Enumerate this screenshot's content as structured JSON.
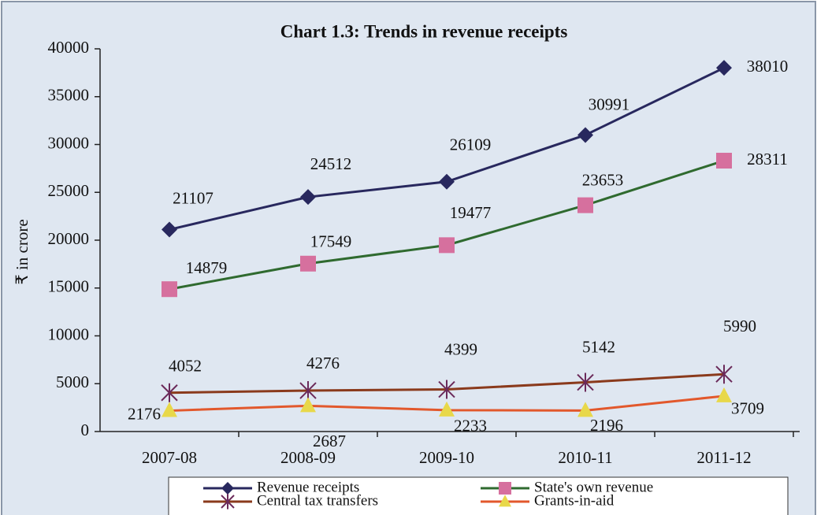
{
  "chart_data": {
    "type": "line",
    "title": "Chart 1.3: Trends in revenue receipts",
    "y_label": "₹ in crore",
    "categories": [
      "2007-08",
      "2008-09",
      "2009-10",
      "2010-11",
      "2011-12"
    ],
    "series": [
      {
        "name": "Revenue receipts",
        "color": "#28285e",
        "marker": "diamond",
        "marker_color": "#28285e",
        "values": [
          21107,
          24512,
          26109,
          30991,
          38010
        ]
      },
      {
        "name": "State's own revenue",
        "color": "#2f6a2f",
        "marker": "square",
        "marker_color": "#d6709e",
        "values": [
          14879,
          17549,
          19477,
          23653,
          28311
        ]
      },
      {
        "name": "Central tax transfers",
        "color": "#8a3a1c",
        "marker": "star",
        "marker_color": "#6b2a5a",
        "values": [
          4052,
          4276,
          4399,
          5142,
          5990
        ]
      },
      {
        "name": "Grants-in-aid",
        "color": "#e2582c",
        "marker": "triangle",
        "marker_color": "#e8d84a",
        "values": [
          2176,
          2687,
          2233,
          2196,
          3709
        ]
      }
    ],
    "ylim": [
      0,
      40000
    ],
    "yticks": [
      0,
      5000,
      10000,
      15000,
      20000,
      25000,
      30000,
      35000,
      40000
    ],
    "grid": false,
    "legend": "bottom"
  }
}
